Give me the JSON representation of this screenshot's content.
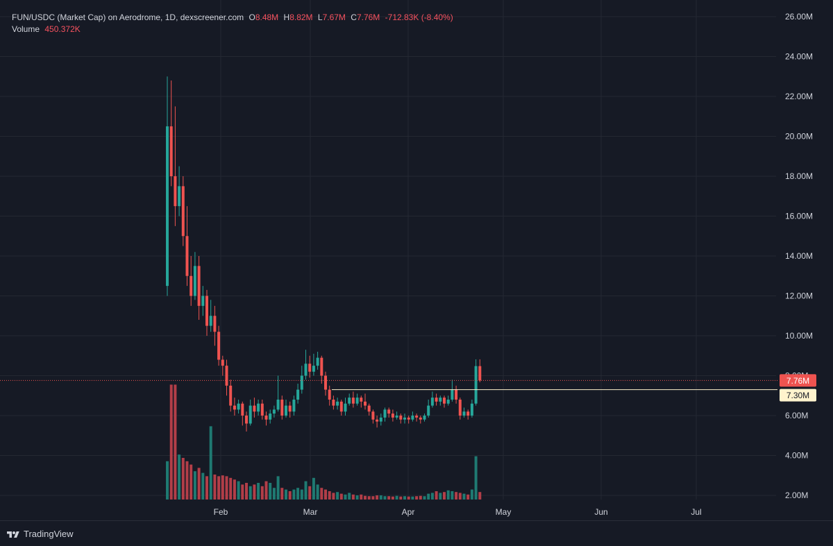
{
  "legend": {
    "title": "FUN/USDC (Market Cap) on Aerodrome, 1D, dexscreener.com",
    "open_label": "O",
    "open": "8.48M",
    "high_label": "H",
    "high": "8.82M",
    "low_label": "L",
    "low": "7.67M",
    "close_label": "C",
    "close": "7.76M",
    "change": "-712.83K (-8.40%)",
    "volume_label": "Volume",
    "volume": "450.372K"
  },
  "branding": {
    "name": "TradingView",
    "logo_icon": "tradingview-logo-icon"
  },
  "colors": {
    "background": "#161a25",
    "grid": "#242832",
    "up": "#26a69a",
    "down": "#ef5350",
    "up_volume": "#1f7a72",
    "down_volume": "#b23e48",
    "last_price_line": "#ef5350",
    "horizontal_line": "#fff3cd"
  },
  "chart_data": {
    "type": "candlestick",
    "title": "FUN/USDC (Market Cap) on Aerodrome, 1D, dexscreener.com",
    "y_axis": {
      "ticks": [
        "2.00M",
        "4.00M",
        "6.00M",
        "8.00M",
        "10.00M",
        "12.00M",
        "14.00M",
        "16.00M",
        "18.00M",
        "20.00M",
        "22.00M",
        "24.00M",
        "26.00M"
      ],
      "range": [
        2.0,
        26.0
      ],
      "units": "M"
    },
    "x_axis": {
      "ticks": [
        "Feb",
        "Mar",
        "Apr",
        "May",
        "Jun",
        "Jul"
      ]
    },
    "last_price_label": "7.76M",
    "horizontal_line_label": "7.30M",
    "horizontal_line_value": 7.3,
    "horizontal_line_from": "Mar",
    "candles": [
      [
        12.5,
        20.5,
        23.0,
        12.0
      ],
      [
        20.5,
        18.0,
        22.8,
        17.5
      ],
      [
        18.0,
        16.5,
        21.5,
        15.5
      ],
      [
        16.5,
        17.5,
        18.5,
        16.0
      ],
      [
        17.5,
        15.0,
        18.0,
        14.5
      ],
      [
        15.0,
        13.0,
        16.5,
        12.5
      ],
      [
        13.0,
        12.0,
        14.0,
        11.5
      ],
      [
        12.0,
        13.5,
        14.2,
        11.8
      ],
      [
        13.5,
        11.5,
        14.0,
        10.8
      ],
      [
        11.5,
        12.0,
        12.5,
        11.0
      ],
      [
        12.0,
        10.5,
        12.3,
        10.0
      ],
      [
        10.5,
        11.0,
        11.8,
        10.2
      ],
      [
        11.0,
        10.2,
        11.5,
        9.5
      ],
      [
        10.2,
        8.8,
        10.5,
        8.5
      ],
      [
        8.8,
        8.5,
        9.0,
        8.0
      ],
      [
        8.5,
        7.5,
        8.8,
        7.0
      ],
      [
        7.5,
        6.5,
        7.8,
        6.2
      ],
      [
        6.5,
        6.3,
        6.9,
        6.0
      ],
      [
        6.3,
        6.6,
        6.8,
        6.1
      ],
      [
        6.6,
        6.0,
        6.7,
        5.5
      ],
      [
        6.0,
        5.6,
        6.2,
        5.2
      ],
      [
        5.6,
        6.5,
        6.8,
        5.5
      ],
      [
        6.5,
        6.2,
        6.9,
        5.9
      ],
      [
        6.2,
        6.6,
        6.8,
        6.0
      ],
      [
        6.6,
        6.0,
        6.8,
        5.8
      ],
      [
        6.0,
        5.8,
        6.2,
        5.5
      ],
      [
        5.8,
        6.1,
        6.3,
        5.6
      ],
      [
        6.1,
        6.3,
        6.5,
        5.9
      ],
      [
        6.3,
        6.8,
        8.0,
        6.2
      ],
      [
        6.8,
        6.0,
        7.0,
        5.8
      ],
      [
        6.0,
        6.5,
        6.8,
        5.9
      ],
      [
        6.5,
        6.2,
        6.7,
        5.9
      ],
      [
        6.2,
        6.8,
        7.0,
        6.0
      ],
      [
        6.8,
        7.3,
        7.6,
        6.6
      ],
      [
        7.3,
        8.0,
        8.5,
        7.1
      ],
      [
        8.0,
        8.6,
        9.3,
        7.8
      ],
      [
        8.6,
        8.2,
        9.0,
        7.9
      ],
      [
        8.2,
        8.5,
        9.1,
        8.0
      ],
      [
        8.5,
        8.9,
        9.2,
        8.3
      ],
      [
        8.9,
        8.0,
        9.0,
        7.6
      ],
      [
        8.0,
        7.3,
        8.2,
        7.0
      ],
      [
        7.3,
        6.8,
        7.5,
        6.5
      ],
      [
        6.8,
        6.5,
        7.0,
        6.3
      ],
      [
        6.5,
        6.7,
        6.9,
        6.3
      ],
      [
        6.7,
        6.2,
        6.8,
        6.0
      ],
      [
        6.2,
        6.6,
        6.9,
        6.0
      ],
      [
        6.6,
        6.9,
        7.1,
        6.5
      ],
      [
        6.9,
        6.6,
        7.2,
        6.4
      ],
      [
        6.6,
        6.9,
        7.1,
        6.5
      ],
      [
        6.9,
        6.7,
        7.0,
        6.4
      ],
      [
        6.7,
        6.5,
        7.1,
        6.3
      ],
      [
        6.5,
        6.2,
        6.6,
        6.0
      ],
      [
        6.2,
        5.8,
        6.3,
        5.6
      ],
      [
        5.8,
        5.7,
        6.0,
        5.4
      ],
      [
        5.7,
        5.9,
        6.1,
        5.5
      ],
      [
        5.9,
        6.3,
        6.4,
        5.7
      ],
      [
        6.3,
        6.1,
        6.4,
        5.9
      ],
      [
        6.1,
        5.9,
        6.3,
        5.7
      ],
      [
        5.9,
        6.0,
        6.2,
        5.8
      ],
      [
        6.0,
        5.8,
        6.1,
        5.6
      ],
      [
        5.8,
        5.9,
        6.1,
        5.6
      ],
      [
        5.9,
        5.8,
        6.0,
        5.6
      ],
      [
        5.8,
        6.0,
        6.2,
        5.7
      ],
      [
        6.0,
        5.9,
        6.1,
        5.7
      ],
      [
        5.9,
        5.8,
        6.0,
        5.6
      ],
      [
        5.8,
        6.0,
        6.1,
        5.7
      ],
      [
        6.0,
        6.5,
        6.8,
        5.9
      ],
      [
        6.5,
        6.9,
        7.2,
        6.4
      ],
      [
        6.9,
        6.7,
        7.1,
        6.5
      ],
      [
        6.7,
        6.9,
        7.0,
        6.5
      ],
      [
        6.9,
        6.6,
        7.0,
        6.4
      ],
      [
        6.6,
        6.8,
        7.0,
        6.5
      ],
      [
        6.8,
        7.3,
        7.8,
        6.7
      ],
      [
        7.3,
        6.8,
        7.5,
        6.6
      ],
      [
        6.8,
        6.0,
        6.9,
        5.8
      ],
      [
        6.0,
        6.2,
        6.4,
        5.9
      ],
      [
        6.2,
        6.0,
        6.3,
        5.8
      ],
      [
        6.0,
        6.6,
        6.8,
        5.9
      ],
      [
        6.6,
        8.48,
        8.82,
        6.5
      ],
      [
        8.48,
        7.76,
        8.82,
        7.67
      ]
    ],
    "volumes": [
      2.3,
      6.9,
      6.9,
      2.7,
      2.5,
      2.3,
      2.1,
      1.7,
      1.9,
      1.6,
      1.4,
      4.4,
      1.5,
      1.4,
      1.45,
      1.4,
      1.3,
      1.2,
      1.1,
      0.9,
      1.0,
      0.8,
      0.9,
      1.0,
      0.8,
      1.1,
      1.0,
      0.7,
      1.4,
      0.7,
      0.6,
      0.5,
      0.6,
      0.7,
      0.6,
      1.1,
      0.8,
      1.3,
      0.9,
      0.7,
      0.6,
      0.5,
      0.4,
      0.45,
      0.35,
      0.3,
      0.4,
      0.3,
      0.25,
      0.3,
      0.22,
      0.2,
      0.2,
      0.25,
      0.25,
      0.2,
      0.2,
      0.18,
      0.22,
      0.18,
      0.2,
      0.18,
      0.18,
      0.2,
      0.22,
      0.2,
      0.35,
      0.4,
      0.5,
      0.4,
      0.45,
      0.55,
      0.5,
      0.45,
      0.4,
      0.35,
      0.3,
      0.6,
      2.6,
      0.45
    ],
    "volume_axis_max": 7.5
  }
}
